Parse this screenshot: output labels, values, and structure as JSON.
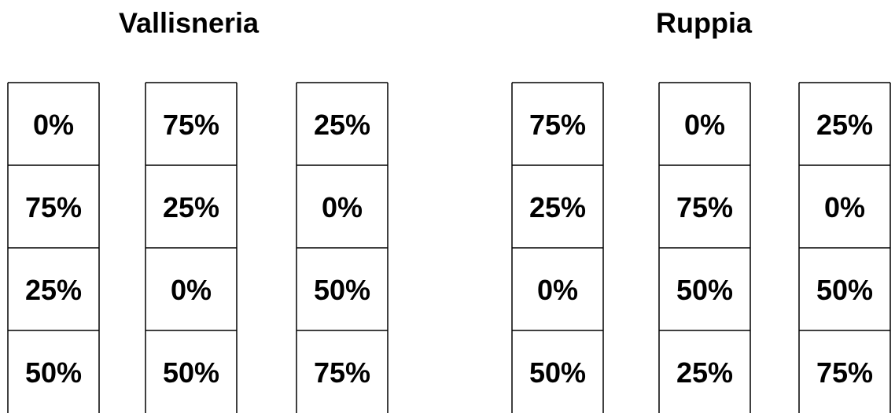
{
  "groups": [
    {
      "title": "Vallisneria",
      "columns": [
        [
          "0%",
          "75%",
          "25%",
          "50%"
        ],
        [
          "75%",
          "25%",
          "0%",
          "50%"
        ],
        [
          "25%",
          "0%",
          "50%",
          "75%"
        ]
      ]
    },
    {
      "title": "Ruppia",
      "columns": [
        [
          "75%",
          "25%",
          "0%",
          "50%"
        ],
        [
          "0%",
          "75%",
          "50%",
          "25%"
        ],
        [
          "25%",
          "0%",
          "50%",
          "75%"
        ]
      ]
    }
  ]
}
